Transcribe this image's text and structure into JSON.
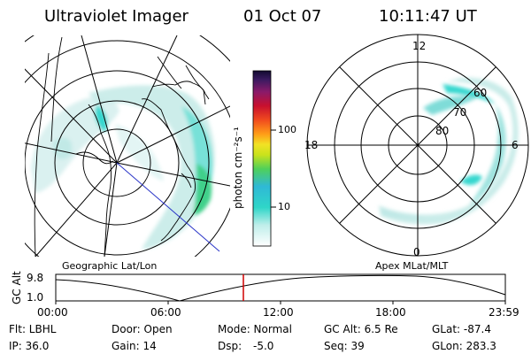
{
  "header": {
    "title": "Ultraviolet Imager",
    "date": "01 Oct 07",
    "time": "10:11:47 UT"
  },
  "colorbar": {
    "unit_label": "photon cm⁻²s⁻¹",
    "ticks": [
      "100",
      "10"
    ]
  },
  "polar_plot": {
    "mlt_labels": [
      "12",
      "18",
      "6",
      "0"
    ],
    "lat_labels": [
      "60",
      "70",
      "80"
    ]
  },
  "projection_labels": {
    "left": "Geographic Lat/Lon",
    "right": "Apex MLat/MLT"
  },
  "altitude_strip": {
    "axis_title": "GC Alt",
    "y_ticks": [
      "9.8",
      "1.0"
    ],
    "x_ticks": [
      "00:00",
      "06:00",
      "12:00",
      "18:00",
      "23:59"
    ],
    "current_time_marker": "10:11:47"
  },
  "status": {
    "row1": {
      "flt": "Flt: LBHL",
      "door": "Door: Open",
      "mode": "Mode: Normal",
      "gc_alt": "GC Alt: 6.5 Re",
      "glat": "GLat: -87.4"
    },
    "row2": {
      "ip": "IP: 36.0",
      "gain": "Gain: 14",
      "dsp_label": "Dsp:",
      "dsp_value": "-5.0",
      "seq": "Seq: 39",
      "glon": "GLon: 283.3"
    }
  },
  "colors": {
    "aurora_light": "#c9ece9",
    "aurora_mid": "#7fdcd8",
    "aurora_bright": "#36d7cf",
    "aurora_green": "#3fd08a",
    "marker_red": "#d00000",
    "track_blue": "#2a35c8"
  }
}
